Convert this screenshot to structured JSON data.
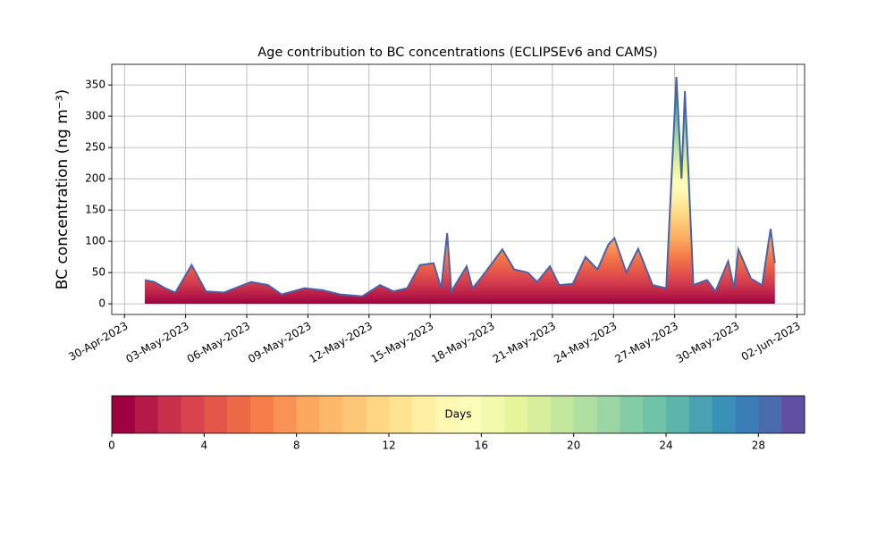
{
  "chart_data": {
    "type": "area",
    "title": "Age contribution to BC concentrations (ECLIPSEv6 and CAMS)",
    "ylabel": "BC concentration (ng m⁻³)",
    "grid": true,
    "xlim": [
      "2023-04-29 09:00",
      "2023-06-02 09:00"
    ],
    "ylim": [
      -17,
      383
    ],
    "yticks": [
      0,
      50,
      100,
      150,
      200,
      250,
      300,
      350
    ],
    "xticks": [
      {
        "value": "2023-04-30",
        "label": "30-Apr-2023"
      },
      {
        "value": "2023-05-03",
        "label": "03-May-2023"
      },
      {
        "value": "2023-05-06",
        "label": "06-May-2023"
      },
      {
        "value": "2023-05-09",
        "label": "09-May-2023"
      },
      {
        "value": "2023-05-12",
        "label": "12-May-2023"
      },
      {
        "value": "2023-05-15",
        "label": "15-May-2023"
      },
      {
        "value": "2023-05-18",
        "label": "18-May-2023"
      },
      {
        "value": "2023-05-21",
        "label": "21-May-2023"
      },
      {
        "value": "2023-05-24",
        "label": "24-May-2023"
      },
      {
        "value": "2023-05-27",
        "label": "27-May-2023"
      },
      {
        "value": "2023-05-30",
        "label": "30-May-2023"
      },
      {
        "value": "2023-06-02",
        "label": "02-Jun-2023"
      }
    ],
    "x": [
      "2023-05-01 00:00",
      "2023-05-01 11:00",
      "2023-05-02 00:00",
      "2023-05-02 12:00",
      "2023-05-03 07:00",
      "2023-05-04 00:00",
      "2023-05-04 21:00",
      "2023-05-06 05:00",
      "2023-05-07 01:00",
      "2023-05-07 17:00",
      "2023-05-08 20:00",
      "2023-05-09 17:00",
      "2023-05-10 14:00",
      "2023-05-11 16:00",
      "2023-05-12 13:00",
      "2023-05-13 05:00",
      "2023-05-13 21:00",
      "2023-05-14 12:00",
      "2023-05-15 04:00",
      "2023-05-15 13:00",
      "2023-05-15 20:00",
      "2023-05-16 01:00",
      "2023-05-16 19:00",
      "2023-05-17 02:00",
      "2023-05-17 14:00",
      "2023-05-18 13:00",
      "2023-05-19 03:00",
      "2023-05-19 19:00",
      "2023-05-20 06:00",
      "2023-05-20 21:00",
      "2023-05-21 08:00",
      "2023-05-22 00:00",
      "2023-05-22 15:00",
      "2023-05-23 05:00",
      "2023-05-23 18:00",
      "2023-05-24 01:00",
      "2023-05-24 15:00",
      "2023-05-25 05:00",
      "2023-05-25 22:00",
      "2023-05-26 14:00",
      "2023-05-27 02:00",
      "2023-05-27 08:00",
      "2023-05-27 12:00",
      "2023-05-27 22:00",
      "2023-05-28 14:00",
      "2023-05-29 00:00",
      "2023-05-29 15:00",
      "2023-05-29 22:00",
      "2023-05-30 03:00",
      "2023-05-30 18:00",
      "2023-05-31 07:00",
      "2023-05-31 17:00",
      "2023-05-31 22:00"
    ],
    "values": [
      38,
      35,
      25,
      18,
      62,
      20,
      18,
      35,
      30,
      15,
      25,
      22,
      15,
      12,
      30,
      20,
      25,
      62,
      65,
      25,
      113,
      20,
      60,
      25,
      45,
      87,
      55,
      50,
      35,
      60,
      30,
      32,
      75,
      55,
      95,
      105,
      50,
      88,
      30,
      25,
      363,
      200,
      340,
      30,
      38,
      20,
      68,
      25,
      87,
      40,
      30,
      120,
      65
    ],
    "color": "#4a63a8",
    "colorbar": {
      "label": "Days",
      "bins": [
        0,
        1,
        2,
        3,
        4,
        5,
        6,
        7,
        8,
        9,
        10,
        11,
        12,
        13,
        14,
        15,
        16,
        17,
        18,
        19,
        20,
        21,
        22,
        23,
        24,
        25,
        26,
        27,
        28,
        29,
        30
      ],
      "colors": [
        "#9e0142",
        "#b41947",
        "#c9304b",
        "#d8434e",
        "#e4564a",
        "#ed6a47",
        "#f67c4a",
        "#f99255",
        "#fca85f",
        "#fdb869",
        "#fec776",
        "#fed684",
        "#fee391",
        "#feefa2",
        "#fef8b3",
        "#fbfdb8",
        "#f2faac",
        "#e6f598",
        "#d7ef9b",
        "#c4e79e",
        "#b1dfa2",
        "#9cd6a4",
        "#84cca5",
        "#6fc3a6",
        "#5cb5aa",
        "#4aa2b1",
        "#3990b9",
        "#3a7eb8",
        "#4a6bae",
        "#5e4fa2"
      ],
      "ticks": [
        0,
        4,
        8,
        12,
        16,
        20,
        24,
        28
      ]
    }
  }
}
